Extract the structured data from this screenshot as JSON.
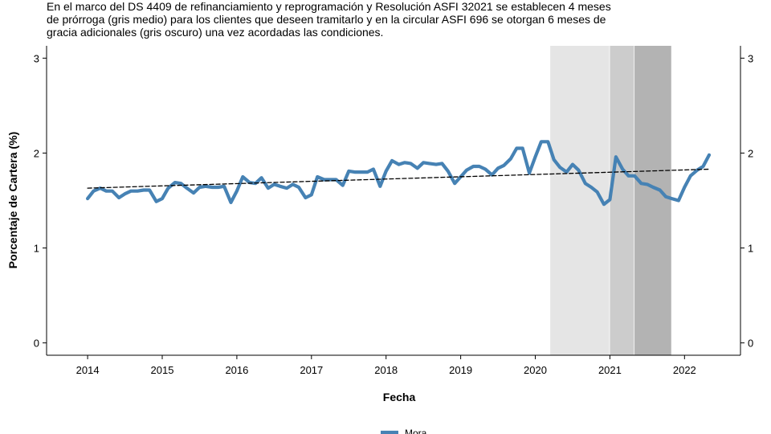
{
  "caption": "En el marco del DS 4409 de refinanciamiento y reprogramación y Resolución ASFI 32021 se establecen 4 meses\nde prórroga (gris medio) para los clientes que deseen tramitarlo y en la circular ASFI 696 se otorgan 6 meses de\ngracia adicionales (gris oscuro) una vez acordadas las condiciones.",
  "chart_data": {
    "type": "line",
    "xlabel": "Fecha",
    "ylabel": "Porcentaje de Cartera (%)",
    "xlim": [
      2013.45,
      2022.75
    ],
    "ylim": [
      -0.13,
      3.13
    ],
    "x_ticks": [
      2014,
      2015,
      2016,
      2017,
      2018,
      2019,
      2020,
      2021,
      2022
    ],
    "x_tick_labels": [
      "2014",
      "2015",
      "2016",
      "2017",
      "2018",
      "2019",
      "2020",
      "2021",
      "2022"
    ],
    "y_ticks": [
      0,
      1,
      2,
      3
    ],
    "y_tick_labels": [
      "0",
      "1",
      "2",
      "3"
    ],
    "grid": false,
    "legend_position": "bottom",
    "shaded_periods": [
      {
        "from": 2020.2,
        "to": 2021.0,
        "color": "#e5e5e5"
      },
      {
        "from": 2021.0,
        "to": 2021.33,
        "color": "#cccccc"
      },
      {
        "from": 2021.33,
        "to": 2021.83,
        "color": "#b3b3b3"
      }
    ],
    "series": [
      {
        "name": "Mora",
        "color": "#4682b4",
        "x": [
          2014.0,
          2014.08,
          2014.17,
          2014.25,
          2014.33,
          2014.42,
          2014.5,
          2014.58,
          2014.67,
          2014.75,
          2014.83,
          2014.92,
          2015.0,
          2015.08,
          2015.17,
          2015.25,
          2015.33,
          2015.42,
          2015.5,
          2015.58,
          2015.67,
          2015.75,
          2015.83,
          2015.92,
          2016.0,
          2016.08,
          2016.17,
          2016.25,
          2016.33,
          2016.42,
          2016.5,
          2016.58,
          2016.67,
          2016.75,
          2016.83,
          2016.92,
          2017.0,
          2017.08,
          2017.17,
          2017.25,
          2017.33,
          2017.42,
          2017.5,
          2017.58,
          2017.67,
          2017.75,
          2017.83,
          2017.92,
          2018.0,
          2018.08,
          2018.17,
          2018.25,
          2018.33,
          2018.42,
          2018.5,
          2018.58,
          2018.67,
          2018.75,
          2018.83,
          2018.92,
          2019.0,
          2019.08,
          2019.17,
          2019.25,
          2019.33,
          2019.42,
          2019.5,
          2019.58,
          2019.67,
          2019.75,
          2019.83,
          2019.92,
          2020.0,
          2020.08,
          2020.17,
          2020.25,
          2020.33,
          2020.42,
          2020.5,
          2020.58,
          2020.67,
          2020.75,
          2020.83,
          2020.92,
          2021.0,
          2021.08,
          2021.17,
          2021.25,
          2021.33,
          2021.42,
          2021.5,
          2021.58,
          2021.67,
          2021.75,
          2021.83,
          2021.92,
          2022.0,
          2022.08,
          2022.17,
          2022.25,
          2022.33
        ],
        "values": [
          1.52,
          1.6,
          1.63,
          1.6,
          1.6,
          1.53,
          1.57,
          1.6,
          1.6,
          1.61,
          1.61,
          1.49,
          1.52,
          1.63,
          1.69,
          1.68,
          1.63,
          1.58,
          1.64,
          1.65,
          1.64,
          1.64,
          1.65,
          1.48,
          1.6,
          1.75,
          1.69,
          1.68,
          1.74,
          1.63,
          1.67,
          1.65,
          1.63,
          1.67,
          1.64,
          1.53,
          1.56,
          1.75,
          1.72,
          1.72,
          1.72,
          1.66,
          1.81,
          1.8,
          1.8,
          1.8,
          1.83,
          1.65,
          1.81,
          1.92,
          1.88,
          1.9,
          1.89,
          1.84,
          1.9,
          1.89,
          1.88,
          1.89,
          1.81,
          1.68,
          1.75,
          1.82,
          1.86,
          1.86,
          1.83,
          1.77,
          1.84,
          1.87,
          1.94,
          2.05,
          2.05,
          1.79,
          1.96,
          2.12,
          2.12,
          1.93,
          1.85,
          1.8,
          1.88,
          1.82,
          1.68,
          1.64,
          1.59,
          1.46,
          1.51,
          1.96,
          1.83,
          1.76,
          1.76,
          1.68,
          1.67,
          1.64,
          1.61,
          1.54,
          1.52,
          1.5,
          1.64,
          1.76,
          1.82,
          1.86,
          1.98
        ]
      },
      {
        "name": "",
        "style": "dashed",
        "color": "#000000",
        "x": [
          2014.0,
          2022.33
        ],
        "values": [
          1.63,
          1.83
        ]
      }
    ]
  }
}
